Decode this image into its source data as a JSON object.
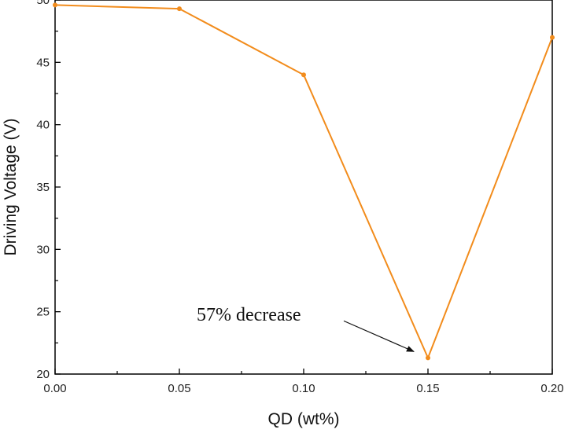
{
  "chart_data": {
    "type": "line",
    "title": "",
    "xlabel": "QD (wt%)",
    "ylabel": "Driving Voltage (V)",
    "xlim": [
      0.0,
      0.2
    ],
    "ylim": [
      20,
      50
    ],
    "x_ticks": [
      "0.00",
      "0.05",
      "0.10",
      "0.15",
      "0.20"
    ],
    "y_ticks": [
      "20",
      "25",
      "30",
      "35",
      "40",
      "45",
      "50"
    ],
    "series": [
      {
        "color": "#f28c1c",
        "x": [
          0.0,
          0.05,
          0.1,
          0.15,
          0.2
        ],
        "values": [
          49.6,
          49.3,
          44.0,
          21.3,
          47.0
        ]
      }
    ],
    "annotation": {
      "text": "57% decrease",
      "target_x": 0.15,
      "target_y": 21.3
    },
    "grid": false,
    "legend": "none"
  }
}
